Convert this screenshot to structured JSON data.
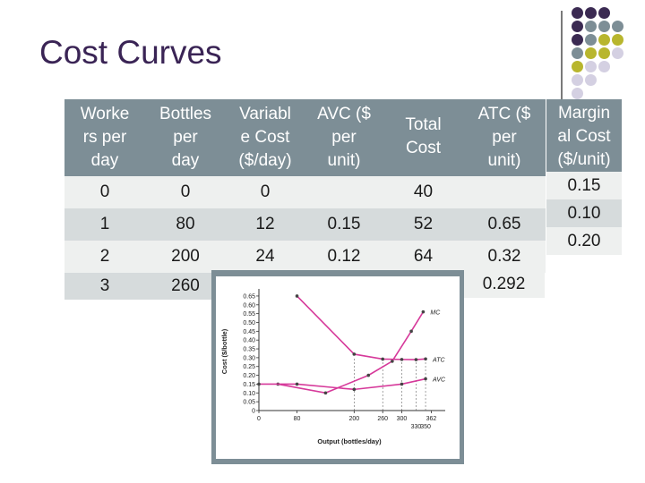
{
  "slide": {
    "title": "Cost Curves"
  },
  "colors": {
    "header_bg": "#7d8e96",
    "row_a": "#eef0ef",
    "row_b": "#d6dbdc",
    "title": "#3a2455",
    "curve": "#d6399a",
    "dot_purple": "#3b2a52",
    "dot_gray": "#7d8e96",
    "dot_olive": "#b8b62e",
    "dot_lavender": "#d4d0e2"
  },
  "table": {
    "headers": [
      [
        "Worke",
        "rs per",
        "day"
      ],
      [
        "Bottles",
        "per",
        "day"
      ],
      [
        "Variabl",
        "e Cost",
        "($/day)"
      ],
      [
        "AVC ($",
        "per",
        "unit)"
      ],
      [
        "Total",
        "Cost"
      ],
      [
        "ATC ($",
        "per",
        "unit)"
      ]
    ],
    "rows": [
      [
        "0",
        "0",
        "0",
        "",
        "40",
        ""
      ],
      [
        "1",
        "80",
        "12",
        "0.15",
        "52",
        "0.65"
      ],
      [
        "2",
        "200",
        "24",
        "0.12",
        "64",
        "0.32"
      ],
      [
        "3",
        "260",
        "",
        "",
        "",
        "0.292"
      ]
    ]
  },
  "marginal": {
    "header": [
      "Margin",
      "al Cost",
      "($/unit)"
    ],
    "values": [
      "0.15",
      "0.10",
      "0.20"
    ]
  },
  "chart_data": {
    "type": "line",
    "xlabel": "Output (bottles/day)",
    "ylabel": "Cost ($/bottle)",
    "x_ticks": [
      "0",
      "80",
      "200",
      "260",
      "300",
      "362",
      "330",
      "350"
    ],
    "y_ticks": [
      "0.65",
      "0.60",
      "0.55",
      "0.50",
      "0.45",
      "0.40",
      "0.35",
      "0.30",
      "0.25",
      "0.20",
      "0.15",
      "0.10",
      "0.05",
      "0"
    ],
    "xlim": [
      0,
      380
    ],
    "ylim": [
      0,
      0.67
    ],
    "series": [
      {
        "name": "MC",
        "points": [
          [
            40,
            0.15
          ],
          [
            140,
            0.1
          ],
          [
            230,
            0.2
          ],
          [
            280,
            0.28
          ],
          [
            320,
            0.45
          ],
          [
            345,
            0.56
          ]
        ]
      },
      {
        "name": "ATC",
        "points": [
          [
            80,
            0.65
          ],
          [
            200,
            0.32
          ],
          [
            260,
            0.292
          ],
          [
            300,
            0.29
          ],
          [
            330,
            0.289
          ],
          [
            350,
            0.293
          ]
        ]
      },
      {
        "name": "AVC",
        "points": [
          [
            0,
            0.15
          ],
          [
            80,
            0.15
          ],
          [
            200,
            0.12
          ],
          [
            300,
            0.15
          ],
          [
            350,
            0.18
          ]
        ]
      }
    ]
  }
}
